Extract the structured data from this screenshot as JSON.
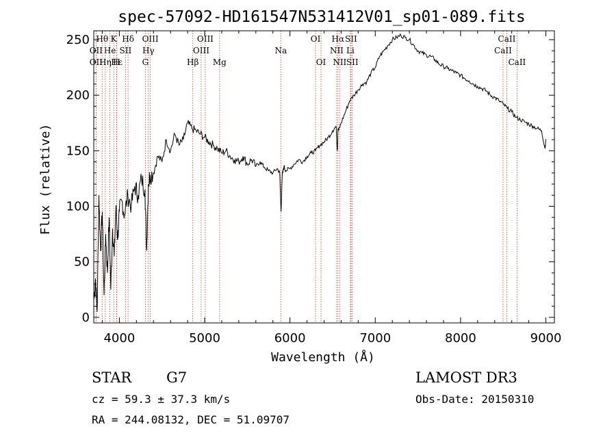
{
  "chart_data": {
    "type": "line",
    "title": "spec-57092-HD161547N531412V01_sp01-089.fits",
    "xlabel": "Wavelength (Å)",
    "ylabel": "Flux (relative)",
    "xlim": [
      3700,
      9100
    ],
    "ylim": [
      -5,
      258
    ],
    "xticks": [
      4000,
      5000,
      6000,
      7000,
      8000,
      9000
    ],
    "yticks": [
      0,
      50,
      100,
      150,
      200,
      250
    ],
    "series": [
      {
        "name": "flux",
        "x": [
          3700,
          3720,
          3740,
          3760,
          3780,
          3800,
          3820,
          3840,
          3860,
          3880,
          3900,
          3920,
          3940,
          3960,
          3980,
          4000,
          4030,
          4060,
          4100,
          4140,
          4180,
          4220,
          4260,
          4300,
          4320,
          4340,
          4360,
          4400,
          4450,
          4500,
          4550,
          4600,
          4650,
          4700,
          4750,
          4800,
          4850,
          4900,
          4950,
          5000,
          5050,
          5100,
          5150,
          5200,
          5250,
          5300,
          5350,
          5400,
          5450,
          5500,
          5550,
          5600,
          5650,
          5700,
          5750,
          5800,
          5850,
          5880,
          5895,
          5910,
          5930,
          5950,
          6000,
          6050,
          6100,
          6150,
          6200,
          6250,
          6300,
          6350,
          6400,
          6450,
          6500,
          6540,
          6555,
          6563,
          6570,
          6600,
          6650,
          6700,
          6750,
          6800,
          6850,
          6900,
          6950,
          7000,
          7050,
          7100,
          7150,
          7200,
          7250,
          7300,
          7350,
          7400,
          7450,
          7500,
          7550,
          7600,
          7650,
          7700,
          7750,
          7800,
          7850,
          7900,
          7950,
          8000,
          8050,
          8100,
          8150,
          8200,
          8250,
          8300,
          8350,
          8400,
          8450,
          8500,
          8550,
          8600,
          8650,
          8700,
          8750,
          8800,
          8850,
          8900,
          8950,
          8990,
          9000
        ],
        "values": [
          15,
          35,
          5,
          110,
          60,
          95,
          20,
          75,
          40,
          90,
          25,
          80,
          55,
          100,
          70,
          95,
          105,
          92,
          110,
          100,
          118,
          110,
          125,
          115,
          60,
          120,
          128,
          130,
          145,
          140,
          160,
          150,
          165,
          155,
          160,
          175,
          170,
          168,
          165,
          162,
          158,
          155,
          152,
          148,
          150,
          145,
          142,
          140,
          145,
          138,
          142,
          136,
          140,
          135,
          132,
          130,
          134,
          130,
          95,
          128,
          136,
          132,
          134,
          138,
          142,
          140,
          145,
          148,
          150,
          155,
          158,
          162,
          168,
          172,
          150,
          170,
          168,
          175,
          185,
          195,
          200,
          205,
          210,
          212,
          220,
          225,
          235,
          240,
          245,
          250,
          252,
          254,
          252,
          250,
          245,
          240,
          238,
          236,
          235,
          232,
          228,
          226,
          224,
          222,
          220,
          218,
          215,
          213,
          210,
          208,
          206,
          204,
          200,
          198,
          195,
          192,
          188,
          185,
          180,
          178,
          176,
          174,
          172,
          170,
          168,
          152,
          160
        ]
      }
    ],
    "line_markers": [
      {
        "label": "Hθ",
        "x": 3798,
        "row": 1
      },
      {
        "label": "K",
        "x": 3934,
        "row": 1
      },
      {
        "label": "Hδ",
        "x": 4102,
        "row": 1
      },
      {
        "label": "OIII",
        "x": 4363,
        "row": 1
      },
      {
        "label": "OIII",
        "x": 5007,
        "row": 1
      },
      {
        "label": "OI",
        "x": 6300,
        "row": 1
      },
      {
        "label": "Hα",
        "x": 6563,
        "row": 1
      },
      {
        "label": "SII",
        "x": 6716,
        "row": 1
      },
      {
        "label": "CaII",
        "x": 8542,
        "row": 1
      },
      {
        "label": "OII",
        "x": 3727,
        "row": 2
      },
      {
        "label": "He",
        "x": 3889,
        "row": 2
      },
      {
        "label": "SII",
        "x": 4072,
        "row": 2
      },
      {
        "label": "Hγ",
        "x": 4340,
        "row": 2
      },
      {
        "label": "OIII",
        "x": 4959,
        "row": 2
      },
      {
        "label": "Na",
        "x": 5893,
        "row": 2
      },
      {
        "label": "NII",
        "x": 6548,
        "row": 2
      },
      {
        "label": "Li",
        "x": 6708,
        "row": 2
      },
      {
        "label": "CaII",
        "x": 8498,
        "row": 2
      },
      {
        "label": "OII",
        "x": 3727,
        "row": 3
      },
      {
        "label": "Hε",
        "x": 3970,
        "row": 3
      },
      {
        "label": "Hη",
        "x": 3835,
        "row": 3
      },
      {
        "label": "H",
        "x": 3968,
        "row": 3
      },
      {
        "label": "G",
        "x": 4305,
        "row": 3
      },
      {
        "label": "Hβ",
        "x": 4861,
        "row": 3
      },
      {
        "label": "Mg",
        "x": 5175,
        "row": 3
      },
      {
        "label": "OI",
        "x": 6364,
        "row": 3
      },
      {
        "label": "NII",
        "x": 6583,
        "row": 3
      },
      {
        "label": "SII",
        "x": 6731,
        "row": 3
      },
      {
        "label": "CaII",
        "x": 8662,
        "row": 3
      }
    ]
  },
  "info": {
    "object_class": "STAR",
    "subclass": "G7",
    "survey": "LAMOST DR3",
    "redshift": "cz = 59.3 ± 37.3 km/s",
    "obs_date": "Obs-Date: 20150310",
    "coords": "RA = 244.08132, DEC =  51.09707"
  }
}
